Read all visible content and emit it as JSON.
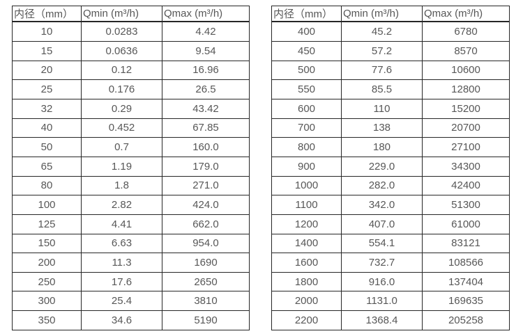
{
  "colors": {
    "background": "#ffffff",
    "border": "#262626",
    "text": "#575757"
  },
  "tables": [
    {
      "title": "flow-range-table-dn10-350",
      "headers": [
        "内径（mm）",
        "Qmin (m³/h)",
        "Qmax (m³/h)"
      ],
      "rows": [
        [
          "10",
          "0.0283",
          "4.42"
        ],
        [
          "15",
          "0.0636",
          "9.54"
        ],
        [
          "20",
          "0.12",
          "16.96"
        ],
        [
          "25",
          "0.176",
          "26.5"
        ],
        [
          "32",
          "0.29",
          "43.42"
        ],
        [
          "40",
          "0.452",
          "67.85"
        ],
        [
          "50",
          "0.7",
          "160.0"
        ],
        [
          "65",
          "1.19",
          "179.0"
        ],
        [
          "80",
          "1.8",
          "271.0"
        ],
        [
          "100",
          "2.82",
          "424.0"
        ],
        [
          "125",
          "4.41",
          "662.0"
        ],
        [
          "150",
          "6.63",
          "954.0"
        ],
        [
          "200",
          "11.3",
          "1690"
        ],
        [
          "250",
          "17.6",
          "2650"
        ],
        [
          "300",
          "25.4",
          "3810"
        ],
        [
          "350",
          "34.6",
          "5190"
        ]
      ]
    },
    {
      "title": "flow-range-table-dn400-2200",
      "headers": [
        "内径（mm）",
        "Qmin (m³/h)",
        "Qmax (m³/h)"
      ],
      "rows": [
        [
          "400",
          "45.2",
          "6780"
        ],
        [
          "450",
          "57.2",
          "8570"
        ],
        [
          "500",
          "77.6",
          "10600"
        ],
        [
          "550",
          "85.5",
          "12800"
        ],
        [
          "600",
          "110",
          "15200"
        ],
        [
          "700",
          "138",
          "20700"
        ],
        [
          "800",
          "180",
          "27100"
        ],
        [
          "900",
          "229.0",
          "34300"
        ],
        [
          "1000",
          "282.0",
          "42400"
        ],
        [
          "1100",
          "342.0",
          "51300"
        ],
        [
          "1200",
          "407.0",
          "61000"
        ],
        [
          "1400",
          "554.1",
          "83121"
        ],
        [
          "1600",
          "732.7",
          "108566"
        ],
        [
          "1800",
          "916.0",
          "137404"
        ],
        [
          "2000",
          "1131.0",
          "169635"
        ],
        [
          "2200",
          "1368.4",
          "205258"
        ]
      ]
    }
  ]
}
